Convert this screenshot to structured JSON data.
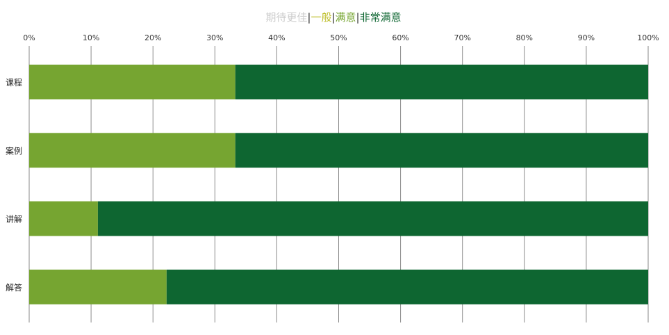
{
  "chart_data": {
    "type": "bar",
    "orientation": "horizontal",
    "stacked": "percent",
    "legend_position": "top",
    "grid": true,
    "xlim": [
      0,
      100
    ],
    "x_ticks": [
      "0%",
      "10%",
      "20%",
      "30%",
      "40%",
      "50%",
      "60%",
      "70%",
      "80%",
      "90%",
      "100%"
    ],
    "categories": [
      "课程",
      "案例",
      "讲解",
      "解答"
    ],
    "series": [
      {
        "name": "期待更佳",
        "color": "#cccccc",
        "values": [
          0,
          0,
          0,
          0
        ]
      },
      {
        "name": "一般",
        "color": "#bfbf2f",
        "values": [
          0,
          0,
          0,
          0
        ]
      },
      {
        "name": "满意",
        "color": "#76a531",
        "values": [
          33.3,
          33.3,
          11.1,
          22.2
        ]
      },
      {
        "name": "非常满意",
        "color": "#0e6631",
        "values": [
          66.7,
          66.7,
          88.9,
          77.8
        ]
      }
    ],
    "legend_separator": "|"
  }
}
